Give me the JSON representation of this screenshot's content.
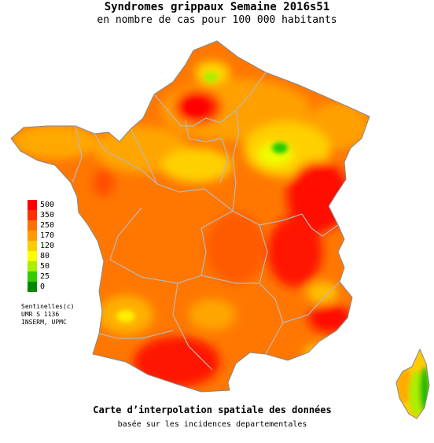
{
  "title": "Syndromes grippaux Semaine 2016s51",
  "subtitle": "en nombre de cas pour 100 000 habitants",
  "legend": {
    "items": [
      {
        "label": "500",
        "color": "#ff0000"
      },
      {
        "label": "350",
        "color": "#ff3000"
      },
      {
        "label": "250",
        "color": "#ff7000"
      },
      {
        "label": "170",
        "color": "#ff9900"
      },
      {
        "label": "120",
        "color": "#ffcc00"
      },
      {
        "label": "80",
        "color": "#ffff00"
      },
      {
        "label": "50",
        "color": "#aaee00"
      },
      {
        "label": "25",
        "color": "#33cc00"
      },
      {
        "label": "0",
        "color": "#008800"
      }
    ]
  },
  "credits": [
    "Sentinelles(c)",
    "UMR S 1136",
    "INSERM, UPMC"
  ],
  "caption": "Carte d’interpolation spatiale des données",
  "caption2": "basée sur les incidences departementales"
}
